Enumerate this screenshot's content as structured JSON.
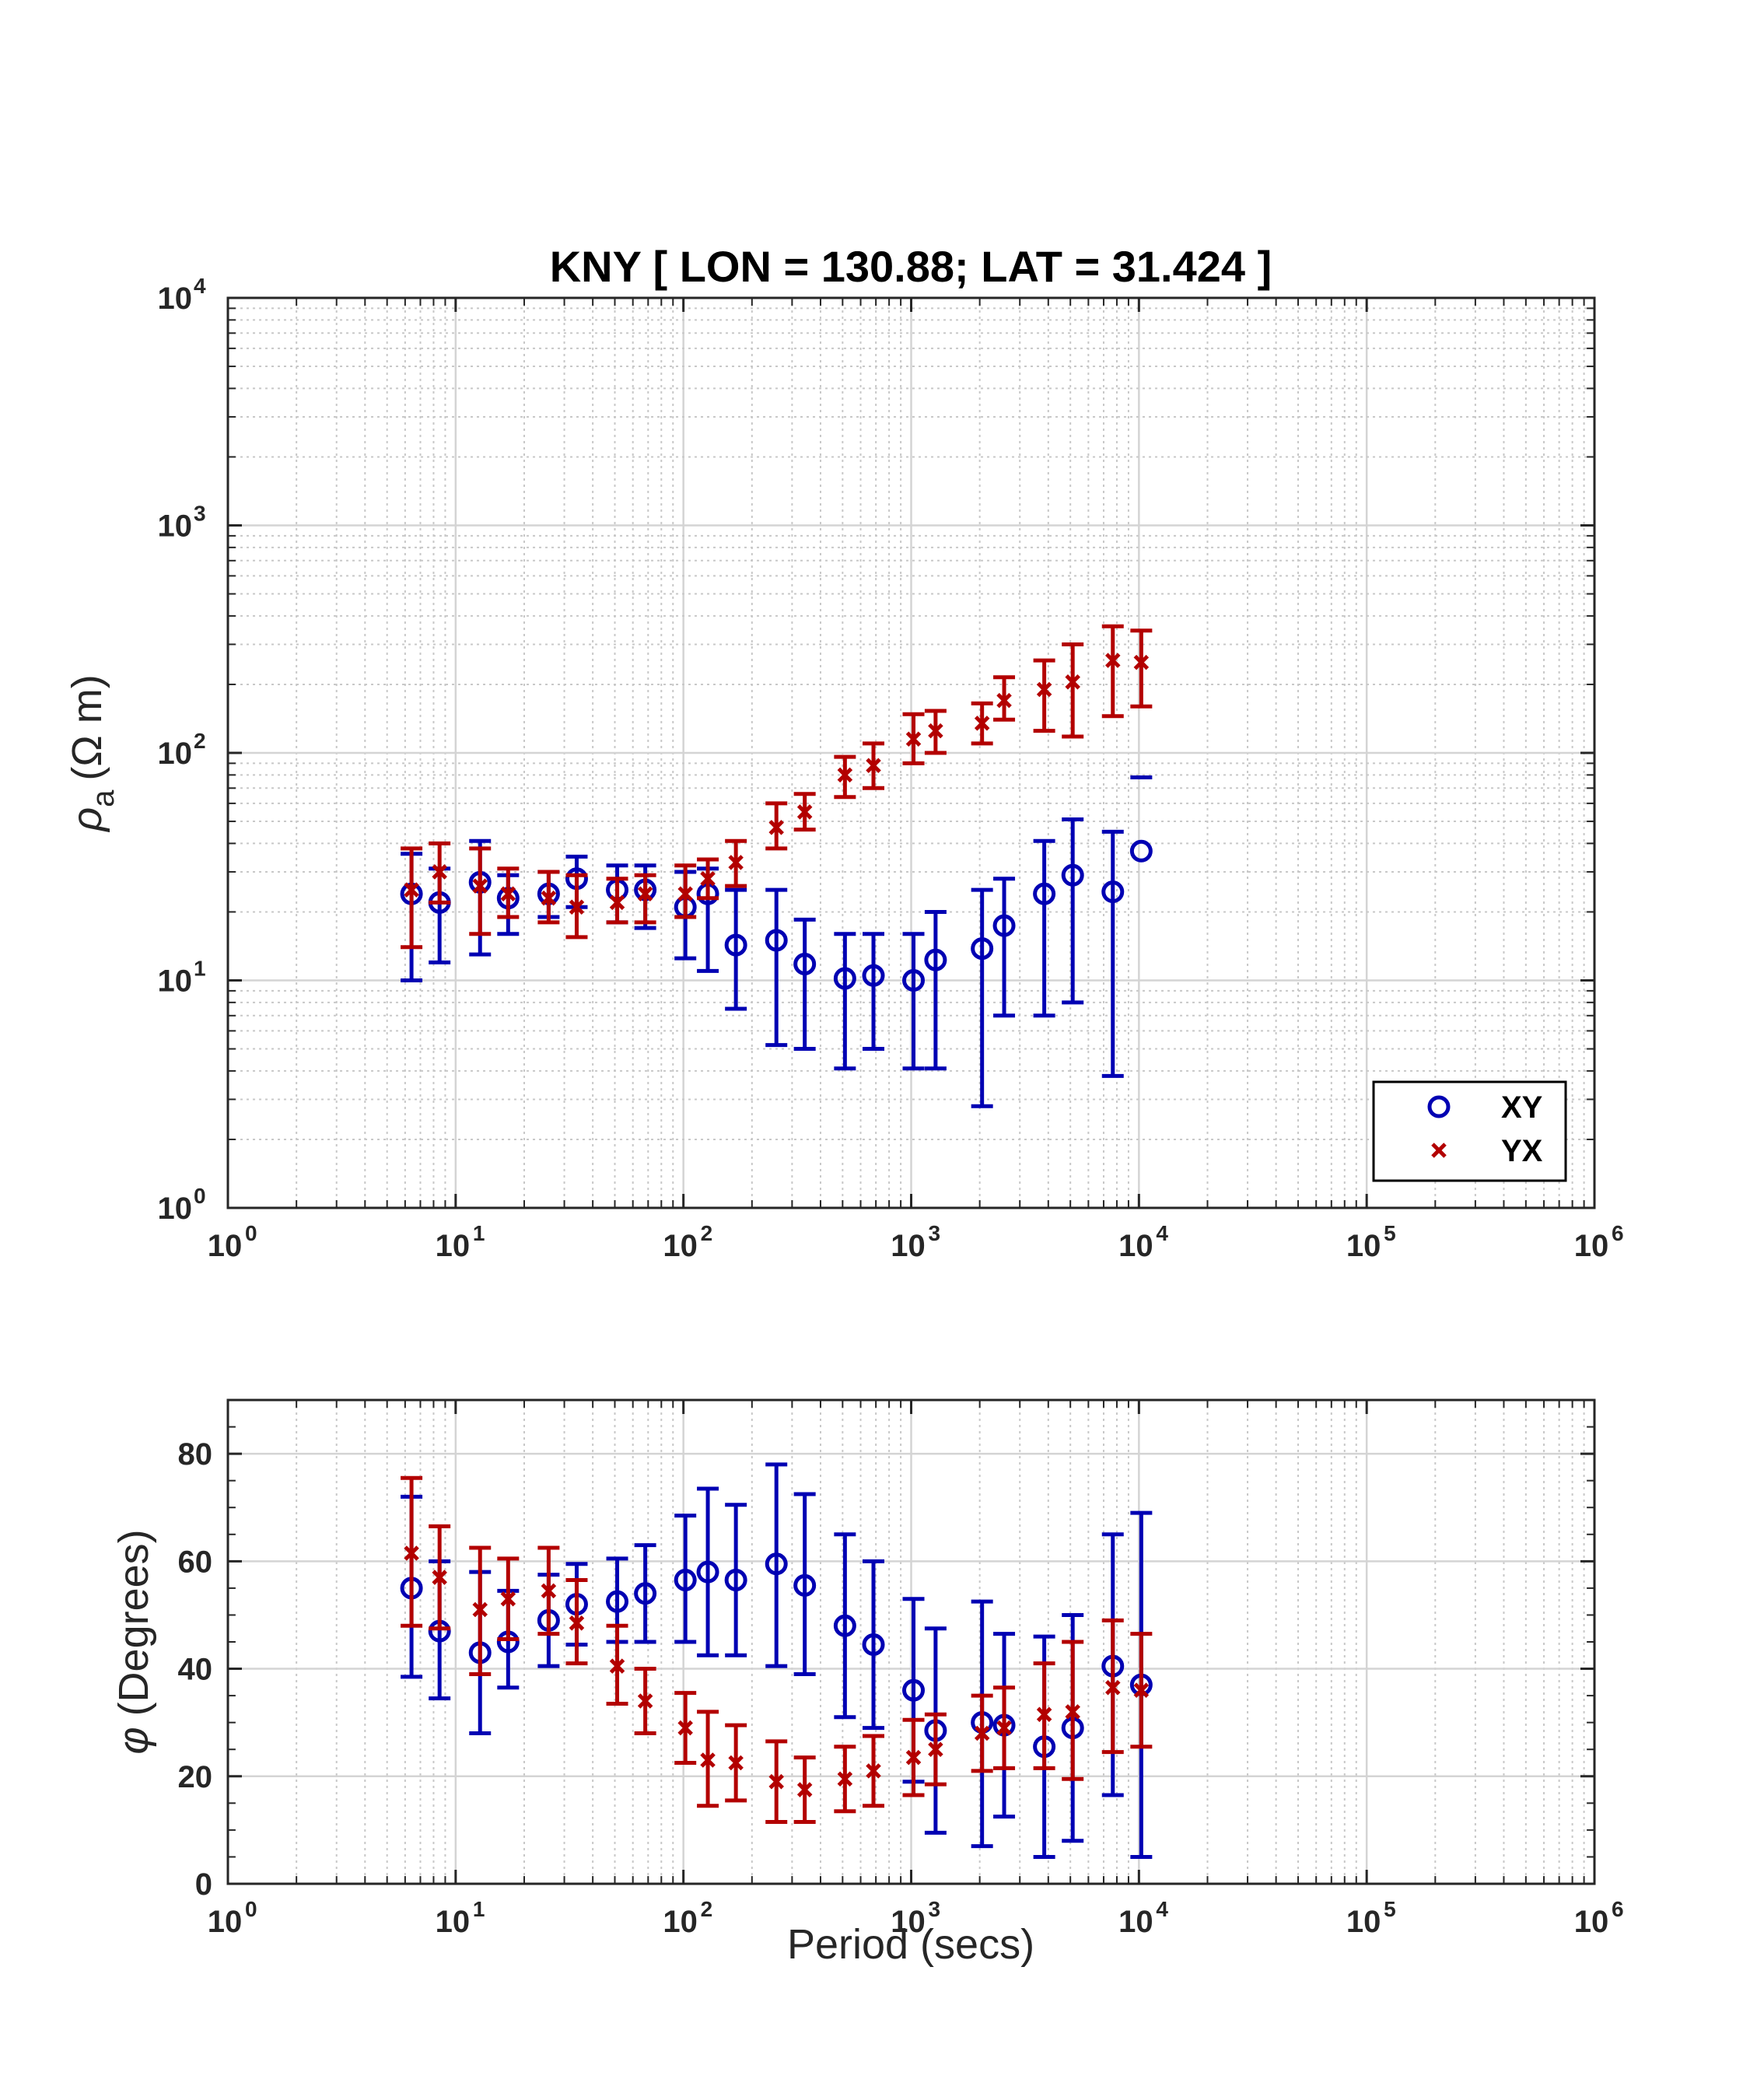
{
  "chart_data": [
    {
      "type": "scatter",
      "title": "KNY [ LON = 130.88; LAT = 31.424 ]",
      "xlabel": "",
      "ylabel": "ρa (Ω m)",
      "ylabel_symbol": "ρ",
      "ylabel_subscript": "a",
      "ylabel_unit": "(Ω m)",
      "xscale": "log",
      "yscale": "log",
      "xlim": [
        1,
        1000000
      ],
      "ylim": [
        1,
        10000
      ],
      "x_tick_exponents": [
        "0",
        "1",
        "2",
        "3",
        "4",
        "5",
        "6"
      ],
      "y_tick_exponents": [
        "0",
        "1",
        "2",
        "3",
        "4"
      ],
      "tick_base": "10",
      "grid": true,
      "minor_grid": true,
      "legend": {
        "position": "bottom-right",
        "entries": [
          "XY",
          "YX"
        ]
      },
      "series": [
        {
          "name": "XY",
          "marker": "circle",
          "color": "#0000b3",
          "x": [
            6.4,
            8.5,
            12.8,
            17,
            25.6,
            34,
            51.2,
            68,
            102,
            128,
            170,
            256,
            341,
            512,
            683,
            1024,
            1280,
            2048,
            2560,
            3840,
            5120,
            7680,
            10240
          ],
          "y": [
            24,
            22,
            27,
            23,
            24,
            28,
            25,
            25,
            21,
            24,
            14.3,
            15,
            11.8,
            10.2,
            10.5,
            10,
            12.3,
            13.8,
            17.4,
            24,
            29,
            24.5,
            37
          ],
          "err_low": [
            10,
            12,
            13,
            16,
            19,
            21,
            18,
            17,
            12.5,
            11,
            7.5,
            5.2,
            5,
            4.1,
            5,
            4.1,
            4.1,
            2.8,
            7,
            7,
            8,
            3.8,
            null
          ],
          "err_high": [
            36,
            31,
            41,
            29,
            30,
            35,
            32,
            32,
            30,
            31,
            25,
            25,
            18.5,
            16,
            16,
            16,
            20,
            25,
            28,
            41,
            51,
            45,
            78
          ]
        },
        {
          "name": "YX",
          "marker": "x",
          "color": "#b30000",
          "x": [
            6.4,
            8.5,
            12.8,
            17,
            25.6,
            34,
            51.2,
            68,
            102,
            128,
            170,
            256,
            341,
            512,
            683,
            1024,
            1280,
            2048,
            2560,
            3840,
            5120,
            7680,
            10240
          ],
          "y": [
            25,
            30,
            26,
            24,
            23,
            21,
            22,
            24,
            24,
            28,
            33,
            47,
            55,
            80,
            88,
            115,
            125,
            135,
            170,
            190,
            205,
            255,
            250
          ],
          "err_low": [
            14,
            22,
            16,
            19,
            18,
            15.5,
            18,
            18,
            19,
            23,
            26,
            38,
            46,
            64,
            70,
            90,
            100,
            110,
            140,
            125,
            118,
            145,
            160
          ],
          "err_high": [
            38,
            40,
            38,
            31,
            30,
            29,
            28,
            29,
            32,
            34,
            41,
            60,
            66,
            96,
            110,
            148,
            153,
            165,
            215,
            255,
            300,
            360,
            345
          ]
        }
      ]
    },
    {
      "type": "scatter",
      "title": "",
      "xlabel": "Period (secs)",
      "ylabel": "φ (Degrees)",
      "ylabel_symbol": "φ",
      "ylabel_unit": "(Degrees)",
      "xscale": "log",
      "yscale": "linear",
      "xlim": [
        1,
        1000000
      ],
      "ylim": [
        0,
        90
      ],
      "x_tick_exponents": [
        "0",
        "1",
        "2",
        "3",
        "4",
        "5",
        "6"
      ],
      "y_ticks": [
        "0",
        "20",
        "40",
        "60",
        "80"
      ],
      "tick_base": "10",
      "grid": true,
      "minor_grid": true,
      "series": [
        {
          "name": "XY",
          "marker": "circle",
          "color": "#0000b3",
          "x": [
            6.4,
            8.5,
            12.8,
            17,
            25.6,
            34,
            51.2,
            68,
            102,
            128,
            170,
            256,
            341,
            512,
            683,
            1024,
            1280,
            2048,
            2560,
            3840,
            5120,
            7680,
            10240
          ],
          "y": [
            55,
            47,
            43,
            45,
            49,
            52,
            52.5,
            54,
            56.5,
            58,
            56.5,
            59.5,
            55.5,
            48,
            44.5,
            36,
            28.5,
            30,
            29.5,
            25.5,
            29,
            40.5,
            37
          ],
          "err_low": [
            38.5,
            34.5,
            28,
            36.5,
            40.5,
            44.5,
            45,
            45,
            45,
            42.5,
            42.5,
            40.5,
            39,
            31,
            29,
            19,
            9.5,
            7,
            12.5,
            5,
            8,
            16.5,
            5
          ],
          "err_high": [
            72,
            60,
            58,
            54.5,
            57.5,
            59.5,
            60.5,
            63,
            68.5,
            73.5,
            70.5,
            78,
            72.5,
            65,
            60,
            53,
            47.5,
            52.5,
            46.5,
            46,
            50,
            65,
            69
          ]
        },
        {
          "name": "YX",
          "marker": "x",
          "color": "#b30000",
          "x": [
            6.4,
            8.5,
            12.8,
            17,
            25.6,
            34,
            51.2,
            68,
            102,
            128,
            170,
            256,
            341,
            512,
            683,
            1024,
            1280,
            2048,
            2560,
            3840,
            5120,
            7680,
            10240
          ],
          "y": [
            61.5,
            57,
            51,
            53,
            54.5,
            48.5,
            40.5,
            34,
            29,
            23,
            22.5,
            19,
            17.5,
            19.5,
            21,
            23.5,
            25,
            28,
            29,
            31.5,
            32,
            36.5,
            36
          ],
          "err_low": [
            48,
            47.5,
            39,
            45.5,
            46.5,
            41,
            33.5,
            28,
            22.5,
            14.5,
            15.5,
            11.5,
            11.5,
            13.5,
            14.5,
            16.5,
            18.5,
            21,
            21.5,
            21.5,
            19.5,
            24.5,
            25.5
          ],
          "err_high": [
            75.5,
            66.5,
            62.5,
            60.5,
            62.5,
            56.5,
            48,
            40,
            35.5,
            32,
            29.5,
            26.5,
            23.5,
            25.5,
            27.5,
            30.5,
            31.5,
            35,
            36.5,
            41,
            45,
            49,
            46.5
          ]
        }
      ]
    }
  ]
}
